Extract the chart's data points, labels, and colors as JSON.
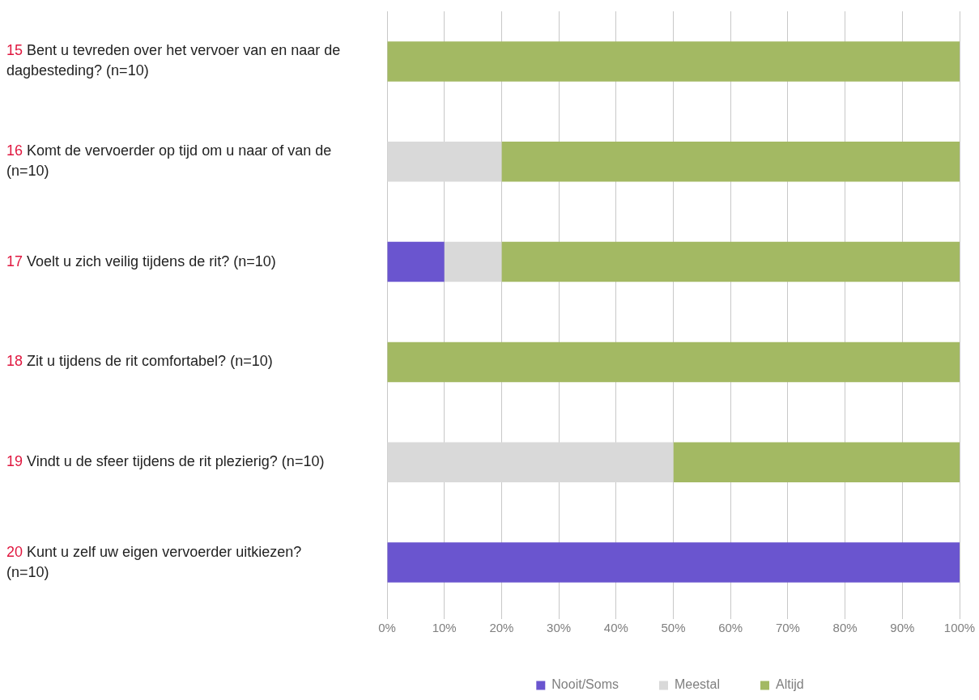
{
  "chart_data": {
    "type": "bar",
    "orientation": "horizontal",
    "stacked": true,
    "categories": [
      "15 Bent u tevreden over het vervoer van en naar de dagbesteding? (n=10)",
      "16 Komt de vervoerder op tijd om u naar of van de (n=10)",
      "17 Voelt u zich veilig tijdens de rit? (n=10)",
      "18 Zit u tijdens de rit comfortabel? (n=10)",
      "19 Vindt u de sfeer tijdens de rit plezierig? (n=10)",
      "20 Kunt u zelf uw eigen vervoerder uitkiezen? (n=10)"
    ],
    "series": [
      {
        "name": "Nooit/Soms",
        "color": "#6a55cf",
        "values": [
          0,
          0,
          10,
          0,
          0,
          100
        ]
      },
      {
        "name": "Meestal",
        "color": "#d9d9d9",
        "values": [
          0,
          20,
          10,
          0,
          50,
          0
        ]
      },
      {
        "name": "Altijd",
        "color": "#a3b963",
        "values": [
          100,
          80,
          80,
          100,
          50,
          0
        ]
      }
    ],
    "xlim": [
      0,
      100
    ],
    "xticks": [
      {
        "value": 0,
        "label": "0%"
      },
      {
        "value": 10,
        "label": "10%"
      },
      {
        "value": 20,
        "label": "20%"
      },
      {
        "value": 30,
        "label": "30%"
      },
      {
        "value": 40,
        "label": "40%"
      },
      {
        "value": 50,
        "label": "50%"
      },
      {
        "value": 60,
        "label": "60%"
      },
      {
        "value": 70,
        "label": "70%"
      },
      {
        "value": 80,
        "label": "80%"
      },
      {
        "value": 90,
        "label": "90%"
      },
      {
        "value": 100,
        "label": "100%"
      }
    ],
    "grid": "x",
    "legend": "bottom"
  }
}
